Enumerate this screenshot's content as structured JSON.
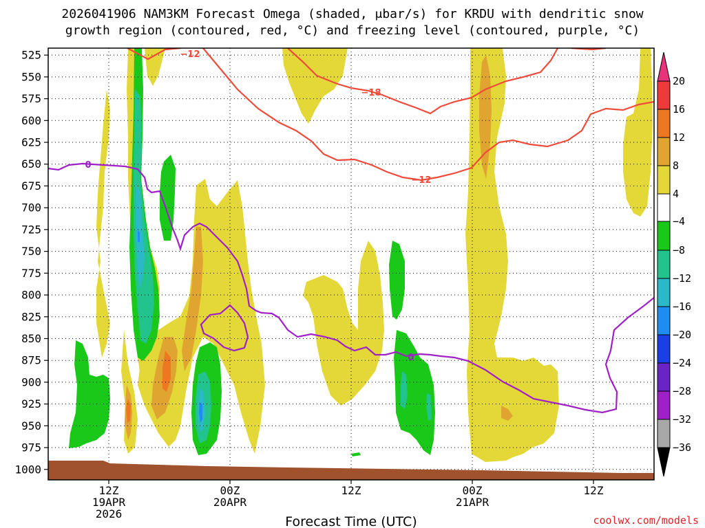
{
  "title": {
    "line1": "2026041906 NAM3KM Forecast Omega (shaded, μbar/s) for KRDU with dendritic snow",
    "line2": "growth region (contoured, red, °C) and freezing level (contoured, purple, °C)"
  },
  "credit": "coolwx.com/models",
  "chart_data": {
    "type": "heatmap",
    "xlabel": "Forecast Time (UTC)",
    "ylabel": "",
    "x_ticks": [
      {
        "label": [
          "12Z",
          "19APR",
          "2026"
        ]
      },
      {
        "label": [
          "00Z",
          "20APR"
        ]
      },
      {
        "label": [
          "12Z"
        ]
      },
      {
        "label": [
          "00Z",
          "21APR"
        ]
      },
      {
        "label": [
          "12Z"
        ]
      }
    ],
    "x_range_hours": [
      6,
      66
    ],
    "y_ticks": [
      525,
      550,
      575,
      600,
      625,
      650,
      675,
      700,
      725,
      750,
      775,
      800,
      825,
      850,
      875,
      900,
      925,
      950,
      975,
      1000
    ],
    "y_range": [
      517,
      1012
    ],
    "y_inverted": true,
    "grid": true,
    "colorbar": {
      "labels": [
        "20",
        "16",
        "12",
        "8",
        "4",
        "−4",
        "−8",
        "−12",
        "−16",
        "−20",
        "−24",
        "−28",
        "−32",
        "−36"
      ],
      "colors": [
        "#e8327a",
        "#ee3a3a",
        "#ee7722",
        "#dfa530",
        "#e3d838",
        "#ffffff",
        "#1ac81a",
        "#22c38c",
        "#2bb8c8",
        "#1e8cf0",
        "#1a3fe6",
        "#6a24c6",
        "#a020c8",
        "#a8a8a8"
      ]
    },
    "contours": [
      {
        "label": "−12",
        "color": "#f04a3a"
      },
      {
        "label": "−18",
        "color": "#f04a3a"
      },
      {
        "label": "−12",
        "color": "#f04a3a"
      },
      {
        "label": "0",
        "color": "#a020c8"
      },
      {
        "label": "0",
        "color": "#a020c8"
      }
    ],
    "ground_color": "#a0522d"
  }
}
